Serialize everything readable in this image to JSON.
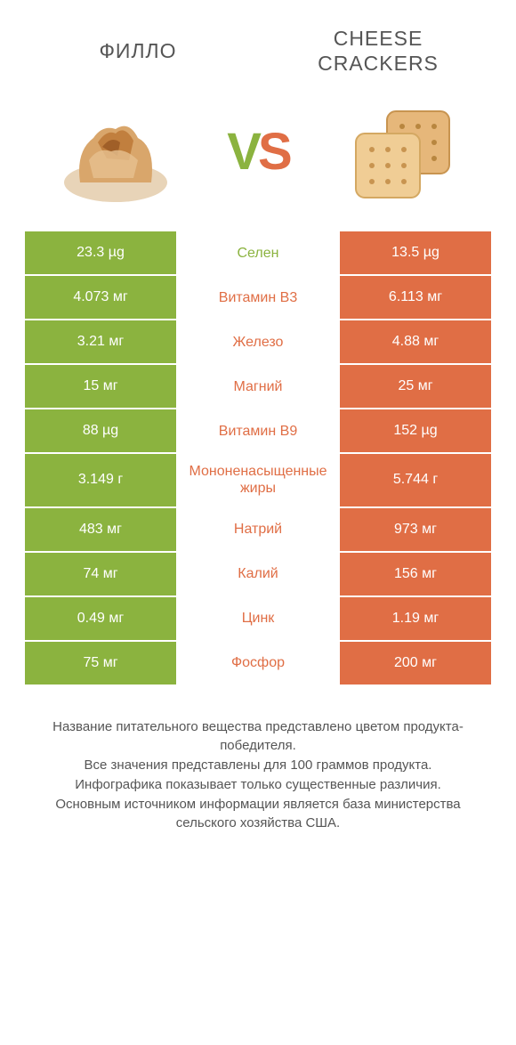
{
  "header": {
    "left_title": "ФИЛЛО",
    "right_title_line1": "CHEESE",
    "right_title_line2": "CRACKERS",
    "vs_v": "V",
    "vs_s": "S"
  },
  "colors": {
    "green": "#8bb33f",
    "orange": "#e06e45",
    "text": "#555555",
    "white": "#ffffff"
  },
  "icons": {
    "left_food": "phyllo-pastry",
    "right_food": "crackers"
  },
  "rows": [
    {
      "left": "23.3 µg",
      "mid": "Селен",
      "right": "13.5 µg",
      "winner": "left"
    },
    {
      "left": "4.073 мг",
      "mid": "Витамин B3",
      "right": "6.113 мг",
      "winner": "right"
    },
    {
      "left": "3.21 мг",
      "mid": "Железо",
      "right": "4.88 мг",
      "winner": "right"
    },
    {
      "left": "15 мг",
      "mid": "Магний",
      "right": "25 мг",
      "winner": "right"
    },
    {
      "left": "88 µg",
      "mid": "Витамин B9",
      "right": "152 µg",
      "winner": "right"
    },
    {
      "left": "3.149 г",
      "mid": "Мононенасыщенные жиры",
      "right": "5.744 г",
      "winner": "right"
    },
    {
      "left": "483 мг",
      "mid": "Натрий",
      "right": "973 мг",
      "winner": "right"
    },
    {
      "left": "74 мг",
      "mid": "Калий",
      "right": "156 мг",
      "winner": "right"
    },
    {
      "left": "0.49 мг",
      "mid": "Цинк",
      "right": "1.19 мг",
      "winner": "right"
    },
    {
      "left": "75 мг",
      "mid": "Фосфор",
      "right": "200 мг",
      "winner": "right"
    }
  ],
  "footer": {
    "line1": "Название питательного вещества представлено цветом продукта-победителя.",
    "line2": "Все значения представлены для 100 граммов продукта.",
    "line3": "Инфографика показывает только существенные различия.",
    "line4": "Основным источником информации является база министерства сельского хозяйства США."
  },
  "typography": {
    "title_fontsize": 23,
    "cell_fontsize": 16,
    "footer_fontsize": 15,
    "vs_fontsize": 58
  }
}
